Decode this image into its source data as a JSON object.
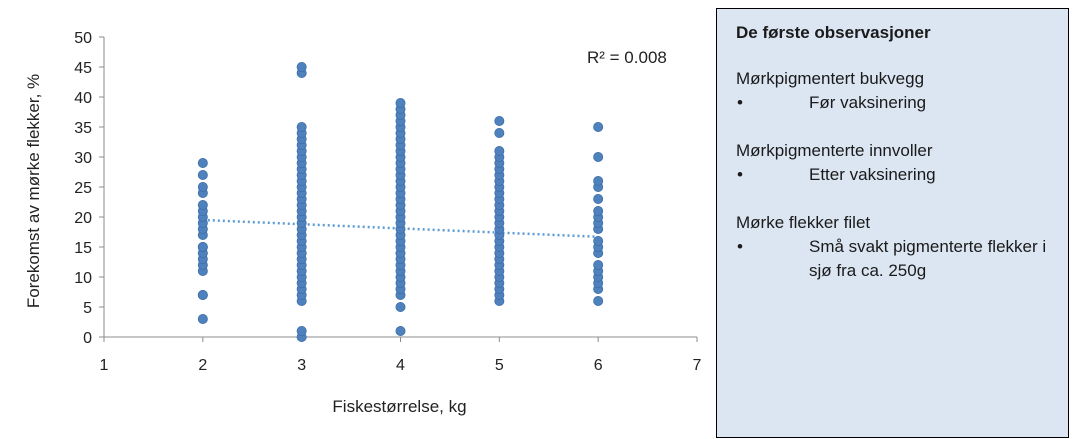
{
  "chart_data": {
    "type": "scatter",
    "title": "",
    "xlabel": "Fiskestørrelse, kg",
    "ylabel": "Forekomst av mørke flekker, %",
    "xlim": [
      1,
      7
    ],
    "ylim": [
      0,
      50
    ],
    "x_ticks": [
      "1",
      "2",
      "3",
      "4",
      "5",
      "6",
      "7"
    ],
    "y_ticks": [
      "0",
      "5",
      "10",
      "15",
      "20",
      "25",
      "30",
      "35",
      "40",
      "45",
      "50"
    ],
    "grid": false,
    "legend": "none",
    "marker_color": "#4f81bd",
    "trendline": {
      "type": "linear",
      "style": "dotted",
      "color": "#5b9bd5",
      "start": [
        2,
        19.5
      ],
      "end": [
        6,
        16.7
      ],
      "r2_label": "R² = 0.008"
    },
    "series": [
      {
        "points": [
          [
            2,
            3
          ],
          [
            2,
            7
          ],
          [
            2,
            7
          ],
          [
            2,
            11
          ],
          [
            2,
            12
          ],
          [
            2,
            13
          ],
          [
            2,
            14
          ],
          [
            2,
            15
          ],
          [
            2,
            15
          ],
          [
            2,
            17
          ],
          [
            2,
            18
          ],
          [
            2,
            19
          ],
          [
            2,
            20
          ],
          [
            2,
            21
          ],
          [
            2,
            22
          ],
          [
            2,
            24
          ],
          [
            2,
            25
          ],
          [
            2,
            27
          ],
          [
            2,
            29
          ],
          [
            3,
            0
          ],
          [
            3,
            1
          ],
          [
            3,
            6
          ],
          [
            3,
            7
          ],
          [
            3,
            8
          ],
          [
            3,
            9
          ],
          [
            3,
            10
          ],
          [
            3,
            11
          ],
          [
            3,
            12
          ],
          [
            3,
            13
          ],
          [
            3,
            14
          ],
          [
            3,
            15
          ],
          [
            3,
            16
          ],
          [
            3,
            17
          ],
          [
            3,
            18
          ],
          [
            3,
            19
          ],
          [
            3,
            20
          ],
          [
            3,
            21
          ],
          [
            3,
            22
          ],
          [
            3,
            23
          ],
          [
            3,
            24
          ],
          [
            3,
            25
          ],
          [
            3,
            26
          ],
          [
            3,
            27
          ],
          [
            3,
            28
          ],
          [
            3,
            29
          ],
          [
            3,
            30
          ],
          [
            3,
            31
          ],
          [
            3,
            32
          ],
          [
            3,
            33
          ],
          [
            3,
            34
          ],
          [
            3,
            35
          ],
          [
            3,
            44
          ],
          [
            3,
            45
          ],
          [
            4,
            1
          ],
          [
            4,
            5
          ],
          [
            4,
            7
          ],
          [
            4,
            8
          ],
          [
            4,
            9
          ],
          [
            4,
            10
          ],
          [
            4,
            11
          ],
          [
            4,
            12
          ],
          [
            4,
            13
          ],
          [
            4,
            14
          ],
          [
            4,
            15
          ],
          [
            4,
            16
          ],
          [
            4,
            17
          ],
          [
            4,
            18
          ],
          [
            4,
            19
          ],
          [
            4,
            20
          ],
          [
            4,
            21
          ],
          [
            4,
            22
          ],
          [
            4,
            23
          ],
          [
            4,
            24
          ],
          [
            4,
            25
          ],
          [
            4,
            26
          ],
          [
            4,
            27
          ],
          [
            4,
            28
          ],
          [
            4,
            29
          ],
          [
            4,
            30
          ],
          [
            4,
            31
          ],
          [
            4,
            32
          ],
          [
            4,
            33
          ],
          [
            4,
            34
          ],
          [
            4,
            35
          ],
          [
            4,
            36
          ],
          [
            4,
            37
          ],
          [
            4,
            38
          ],
          [
            4,
            39
          ],
          [
            5,
            6
          ],
          [
            5,
            7
          ],
          [
            5,
            8
          ],
          [
            5,
            9
          ],
          [
            5,
            10
          ],
          [
            5,
            11
          ],
          [
            5,
            12
          ],
          [
            5,
            13
          ],
          [
            5,
            14
          ],
          [
            5,
            15
          ],
          [
            5,
            16
          ],
          [
            5,
            17
          ],
          [
            5,
            18
          ],
          [
            5,
            19
          ],
          [
            5,
            20
          ],
          [
            5,
            21
          ],
          [
            5,
            22
          ],
          [
            5,
            23
          ],
          [
            5,
            24
          ],
          [
            5,
            25
          ],
          [
            5,
            26
          ],
          [
            5,
            27
          ],
          [
            5,
            28
          ],
          [
            5,
            29
          ],
          [
            5,
            30
          ],
          [
            5,
            31
          ],
          [
            5,
            34
          ],
          [
            5,
            36
          ],
          [
            6,
            6
          ],
          [
            6,
            8
          ],
          [
            6,
            9
          ],
          [
            6,
            10
          ],
          [
            6,
            11
          ],
          [
            6,
            12
          ],
          [
            6,
            14
          ],
          [
            6,
            15
          ],
          [
            6,
            16
          ],
          [
            6,
            18
          ],
          [
            6,
            19
          ],
          [
            6,
            20
          ],
          [
            6,
            21
          ],
          [
            6,
            23
          ],
          [
            6,
            25
          ],
          [
            6,
            26
          ],
          [
            6,
            30
          ],
          [
            6,
            35
          ]
        ]
      }
    ]
  },
  "info_box": {
    "title": "De første observasjoner",
    "background": "#dce6f2",
    "bullet_symbol": "•",
    "groups": [
      {
        "heading": "Mørkpigmentert bukvegg",
        "bullet": "Før vaksinering"
      },
      {
        "heading": "Mørkpigmenterte innvoller",
        "bullet": "Etter vaksinering"
      },
      {
        "heading": "Mørke flekker filet",
        "bullet": "Små svakt pigmenterte flekker i sjø fra ca. 250g"
      }
    ]
  }
}
